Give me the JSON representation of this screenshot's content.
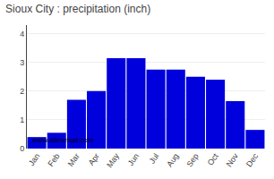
{
  "chart_data": {
    "type": "bar",
    "title": "Sioux City : precipitation (inch)",
    "categories": [
      "Jan",
      "Feb",
      "Mar",
      "Apr",
      "May",
      "Jun",
      "Jul",
      "Aug",
      "Sep",
      "Oct",
      "Nov",
      "Dec"
    ],
    "values": [
      0.4,
      0.55,
      1.7,
      2.0,
      3.15,
      3.15,
      2.75,
      2.75,
      2.5,
      2.4,
      1.65,
      0.65
    ],
    "color": "#0000dd",
    "ylim": [
      0,
      4.3
    ],
    "yticks": [
      0,
      1,
      2,
      3,
      4
    ],
    "grid": true,
    "annotations": [
      "www.allmetsat.com"
    ]
  }
}
